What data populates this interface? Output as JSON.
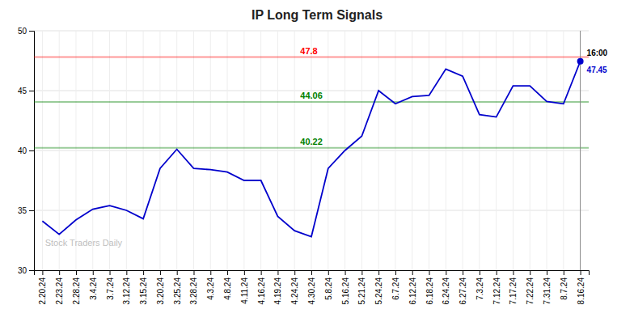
{
  "chart_data": {
    "type": "line",
    "title": "IP Long Term Signals",
    "categories": [
      "2.20.24",
      "2.23.24",
      "2.28.24",
      "3.4.24",
      "3.7.24",
      "3.12.24",
      "3.15.24",
      "3.20.24",
      "3.25.24",
      "3.28.24",
      "4.3.24",
      "4.8.24",
      "4.11.24",
      "4.16.24",
      "4.19.24",
      "4.24.24",
      "4.30.24",
      "5.8.24",
      "5.16.24",
      "5.21.24",
      "5.24.24",
      "6.7.24",
      "6.12.24",
      "6.18.24",
      "6.24.24",
      "6.27.24",
      "7.3.24",
      "7.12.24",
      "7.17.24",
      "7.22.24",
      "7.31.24",
      "8.7.24",
      "8.16.24"
    ],
    "values": [
      34.1,
      33.0,
      34.2,
      35.1,
      35.4,
      35.0,
      34.3,
      38.5,
      40.1,
      38.5,
      38.4,
      38.2,
      37.5,
      37.5,
      34.5,
      33.3,
      32.8,
      38.5,
      40.0,
      41.2,
      45.0,
      43.9,
      44.5,
      44.6,
      46.8,
      46.2,
      43.0,
      42.8,
      45.4,
      45.4,
      44.1,
      43.9,
      47.45
    ],
    "color": "#0000cc",
    "ylim": [
      30,
      50
    ],
    "yticks": [
      30,
      35,
      40,
      45,
      50
    ],
    "grid": true,
    "annotations": [
      {
        "type": "hline",
        "value": 47.8,
        "label": "47.8",
        "color": "red"
      },
      {
        "type": "hline",
        "value": 44.06,
        "label": "44.06",
        "color": "green"
      },
      {
        "type": "hline",
        "value": 40.22,
        "label": "40.22",
        "color": "green"
      },
      {
        "type": "end_label",
        "label": "16:00"
      },
      {
        "type": "end_value",
        "value": 47.45,
        "label": "47.45",
        "color": "#0000cc"
      },
      {
        "type": "watermark",
        "label": "Stock Traders Daily"
      }
    ]
  }
}
